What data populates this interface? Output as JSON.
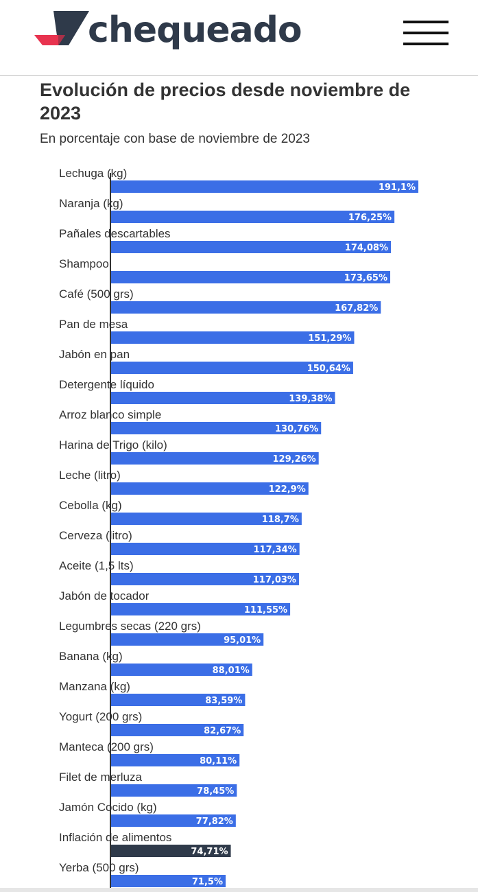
{
  "header": {
    "logo_text": "chequeado",
    "menu_icon": "hamburger-menu-icon"
  },
  "chart_data": {
    "type": "bar",
    "orientation": "horizontal",
    "title": "Evolución de precios desde noviembre de 2023",
    "subtitle": "En porcentaje con base de noviembre de 2023",
    "categories": [
      "Lechuga (kg)",
      "Naranja (kg)",
      "Pañales descartables",
      "Shampoo",
      "Café (500 grs)",
      "Pan de mesa",
      "Jabón en pan",
      "Detergente líquido",
      "Arroz blanco simple",
      "Harina de Trigo (kilo)",
      "Leche (litro)",
      "Cebolla (kg)",
      "Cerveza (litro)",
      "Aceite (1,5 lts)",
      "Jabón de tocador",
      "Legumbres secas (220 grs)",
      "Banana (kg)",
      "Manzana (kg)",
      "Yogurt (200 grs)",
      "Manteca (200 grs)",
      "Filet de merluza",
      "Jamón Cocido (kg)",
      "Inflación de alimentos",
      "Yerba (500 grs)"
    ],
    "values": [
      191.1,
      176.25,
      174.08,
      173.65,
      167.82,
      151.29,
      150.64,
      139.38,
      130.76,
      129.26,
      122.9,
      118.7,
      117.34,
      117.03,
      111.55,
      95.01,
      88.01,
      83.59,
      82.67,
      80.11,
      78.45,
      77.82,
      74.71,
      71.5
    ],
    "data_labels": [
      "191,1%",
      "176,25%",
      "174,08%",
      "173,65%",
      "167,82%",
      "151,29%",
      "150,64%",
      "139,38%",
      "130,76%",
      "129,26%",
      "122,9%",
      "118,7%",
      "117,34%",
      "117,03%",
      "111,55%",
      "95,01%",
      "88,01%",
      "83,59%",
      "82,67%",
      "80,11%",
      "78,45%",
      "77,82%",
      "74,71%",
      "71,5%"
    ],
    "highlight": "Inflación de alimentos",
    "colors": {
      "bar": "#3b6ee6",
      "highlight": "#2f3a4a",
      "axis": "#333333"
    },
    "xlim": [
      0,
      200
    ]
  }
}
